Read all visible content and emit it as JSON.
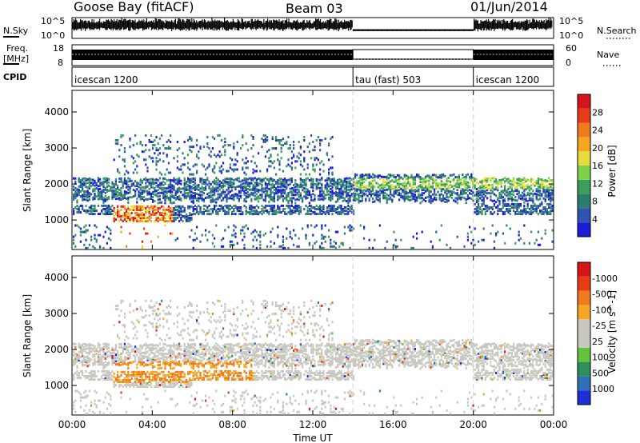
{
  "header": {
    "site": "Goose Bay (fitACF)",
    "beam": "Beam 03",
    "date": "01/Jun/2014"
  },
  "top_panels": {
    "nsky_label": "N.Sky",
    "nsky_ticks": [
      "10^5",
      "10^0"
    ],
    "nsearch_label": "N.Search",
    "nsearch_ticks": [
      "10^5",
      "10^0"
    ],
    "freq_label_1": "Freq.",
    "freq_label_2": "[MHz]",
    "freq_ticks": [
      "18",
      "8"
    ],
    "nave_label": "Nave",
    "nave_ticks": [
      "60",
      "0"
    ],
    "cpid_label": "CPID",
    "cpid_segments": [
      {
        "label": "icescan 1200",
        "start_hr": 0,
        "end_hr": 14
      },
      {
        "label": "tau (fast) 503",
        "start_hr": 14,
        "end_hr": 20
      },
      {
        "label": "icescan 1200",
        "start_hr": 20,
        "end_hr": 24
      }
    ]
  },
  "chart_data": [
    {
      "type": "heatmap",
      "title": "",
      "xlabel": "",
      "ylabel": "Slant Range [km]",
      "xlim": [
        0,
        24
      ],
      "ylim": [
        180,
        4600
      ],
      "ytick_values": [
        1000,
        2000,
        3000,
        4000
      ],
      "ytick_labels": [
        "1000",
        "2000",
        "3000",
        "4000"
      ],
      "colorbar": {
        "label": "Power [dB]",
        "tick_labels": [
          "4",
          "8",
          "12",
          "16",
          "20",
          "24",
          "28"
        ],
        "colors": [
          "#1c1cd6",
          "#2f53b0",
          "#2d7c70",
          "#3b9e5a",
          "#7ed24a",
          "#e6dc3e",
          "#f5a623",
          "#f07a1c",
          "#e63c16",
          "#d6141a"
        ]
      }
    },
    {
      "type": "heatmap",
      "title": "",
      "xlabel": "Time UT",
      "ylabel": "Slant Range [km]",
      "xlim": [
        0,
        24
      ],
      "ylim": [
        180,
        4600
      ],
      "xtick_values": [
        0,
        4,
        8,
        12,
        16,
        20,
        24
      ],
      "xtick_labels": [
        "00:00",
        "04:00",
        "08:00",
        "12:00",
        "16:00",
        "20:00",
        "00:00"
      ],
      "ytick_values": [
        1000,
        2000,
        3000,
        4000
      ],
      "ytick_labels": [
        "1000",
        "2000",
        "3000",
        "4000"
      ],
      "colorbar": {
        "label": "Velocity [m s^-1]",
        "tick_labels": [
          "1000",
          "500",
          "100",
          "25",
          "-25",
          "-100",
          "-500",
          "-1000"
        ],
        "colors": [
          "#1c2fd6",
          "#2f6fb8",
          "#2d8f5a",
          "#63c43c",
          "#c8c8c0",
          "#c8c8c0",
          "#f5a623",
          "#f07a1c",
          "#e63c16",
          "#d6141a"
        ]
      }
    }
  ]
}
